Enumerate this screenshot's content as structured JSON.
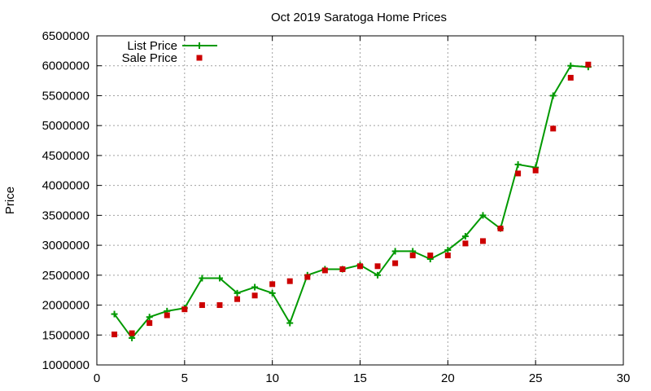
{
  "chart_data": {
    "type": "line",
    "title": "Oct 2019 Saratoga Home Prices",
    "xlabel": "",
    "ylabel": "Price",
    "xlim": [
      0,
      30
    ],
    "ylim": [
      1000000,
      6500000
    ],
    "xticks": [
      "0",
      "5",
      "10",
      "15",
      "20",
      "25",
      "30"
    ],
    "yticks": [
      "1000000",
      "1500000",
      "2000000",
      "2500000",
      "3000000",
      "3500000",
      "4000000",
      "4500000",
      "5000000",
      "5500000",
      "6000000",
      "6500000"
    ],
    "grid": true,
    "legend_position": "top-left",
    "series": [
      {
        "name": "List Price",
        "style": "line with plus markers",
        "color": "#009900",
        "x": [
          1,
          2,
          3,
          4,
          5,
          6,
          7,
          8,
          9,
          10,
          11,
          12,
          13,
          14,
          15,
          16,
          17,
          18,
          19,
          20,
          21,
          22,
          23,
          24,
          25,
          26,
          27,
          28
        ],
        "values": [
          1850000,
          1450000,
          1800000,
          1900000,
          1950000,
          2450000,
          2450000,
          2200000,
          2300000,
          2200000,
          1700000,
          2500000,
          2600000,
          2600000,
          2670000,
          2500000,
          2900000,
          2900000,
          2770000,
          2920000,
          3150000,
          3500000,
          3280000,
          4350000,
          4300000,
          5500000,
          6000000,
          5980000
        ]
      },
      {
        "name": "Sale Price",
        "style": "square markers",
        "color": "#cc0000",
        "x": [
          1,
          2,
          3,
          4,
          5,
          6,
          7,
          8,
          9,
          10,
          11,
          12,
          13,
          14,
          15,
          16,
          17,
          18,
          19,
          20,
          21,
          22,
          23,
          24,
          25,
          26,
          27,
          28
        ],
        "values": [
          1510000,
          1530000,
          1700000,
          1830000,
          1930000,
          2000000,
          2000000,
          2100000,
          2160000,
          2350000,
          2400000,
          2470000,
          2580000,
          2600000,
          2650000,
          2650000,
          2700000,
          2830000,
          2830000,
          2830000,
          3030000,
          3070000,
          3280000,
          4200000,
          4250000,
          4950000,
          5800000,
          6020000
        ]
      }
    ]
  }
}
